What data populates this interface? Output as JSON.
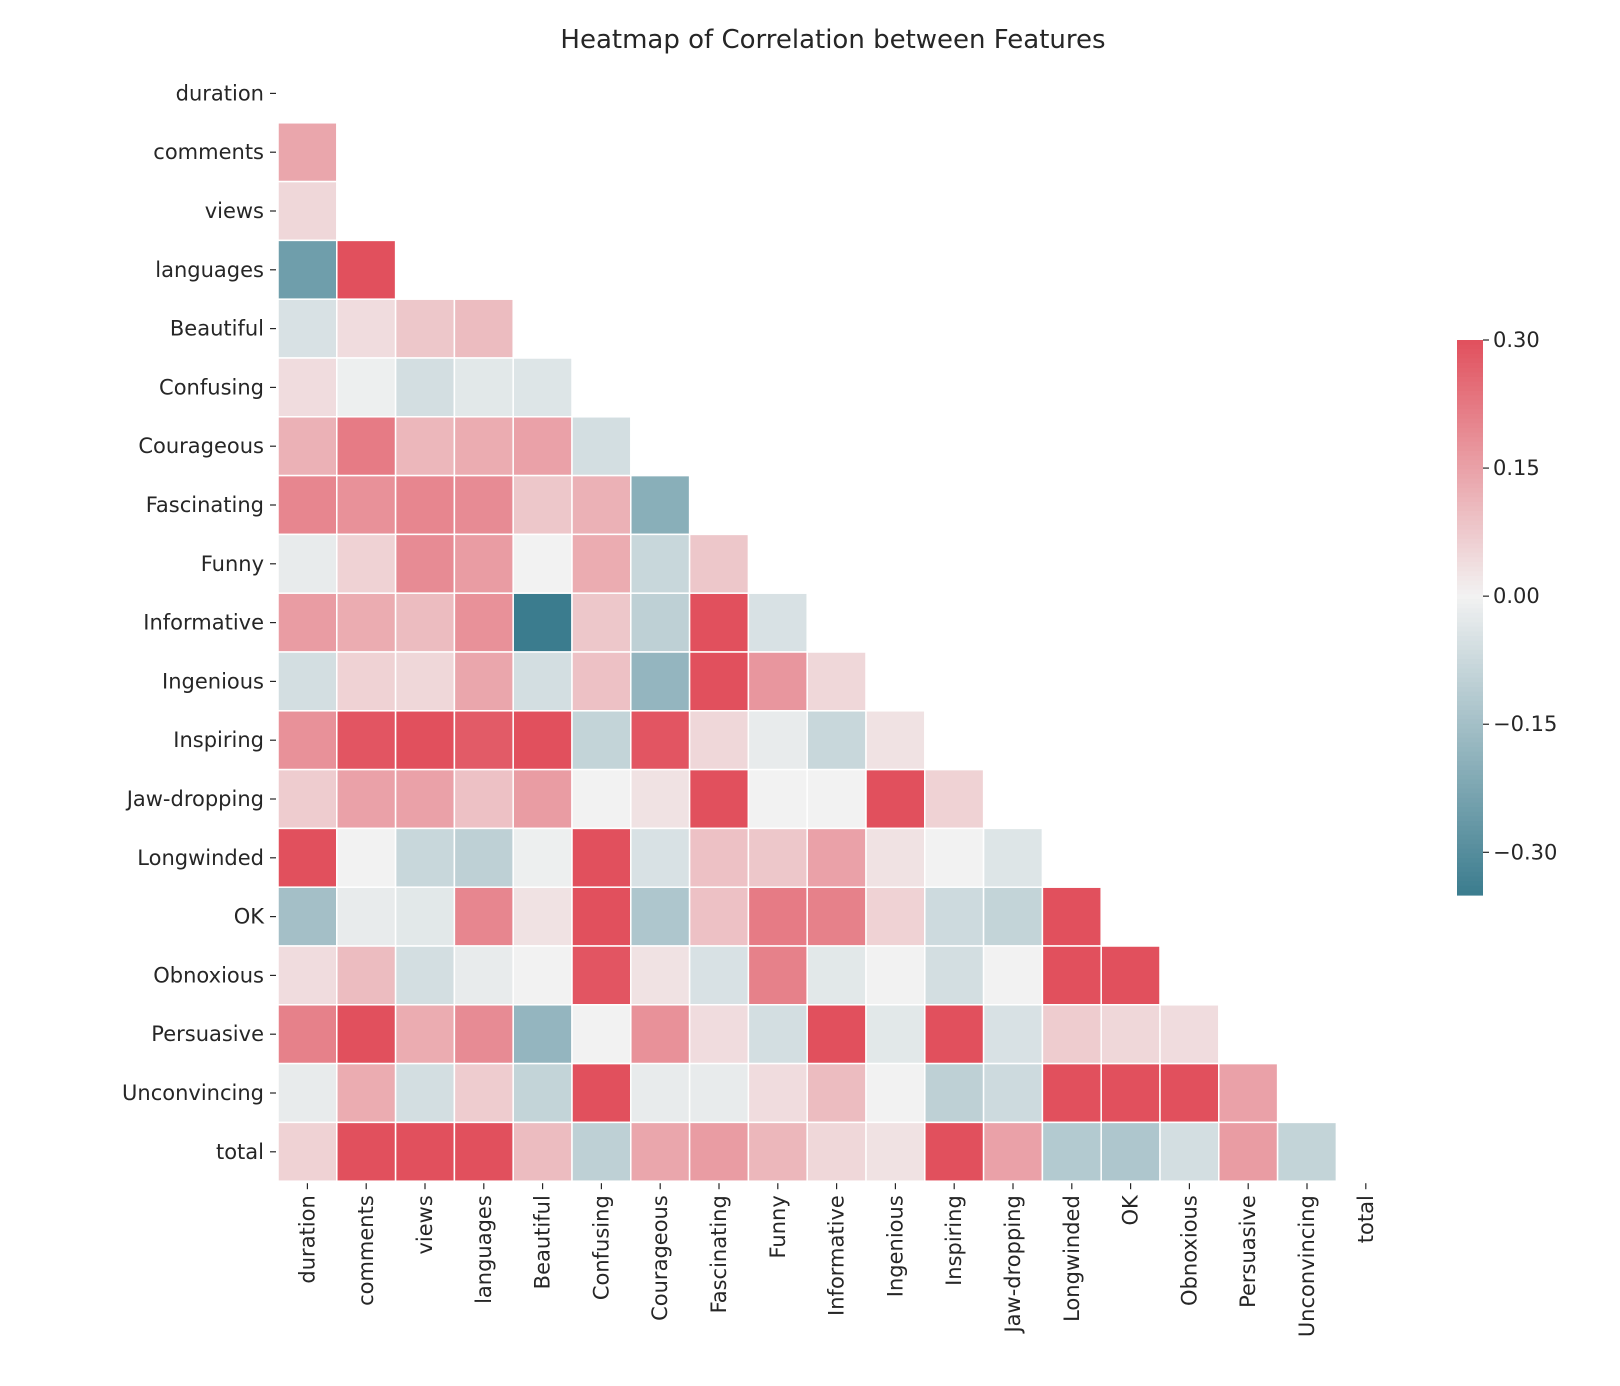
{
  "chart_data": {
    "type": "heatmap",
    "title": "Heatmap of Correlation between Features",
    "xlabel": "",
    "ylabel": "",
    "mask": "upper-triangle-including-diagonal",
    "grid_lines": "white",
    "labels": [
      "duration",
      "comments",
      "views",
      "languages",
      "Beautiful",
      "Confusing",
      "Courageous",
      "Fascinating",
      "Funny",
      "Informative",
      "Ingenious",
      "Inspiring",
      "Jaw-dropping",
      "Longwinded",
      "OK",
      "Obnoxious",
      "Persuasive",
      "Unconvincing",
      "total"
    ],
    "lower_triangle_rows": [
      [],
      [
        0.14
      ],
      [
        0.05
      ],
      [
        -0.25,
        0.5
      ],
      [
        -0.05,
        0.04,
        0.08,
        0.1
      ],
      [
        0.04,
        -0.01,
        -0.06,
        -0.03,
        -0.04
      ],
      [
        0.12,
        0.22,
        0.11,
        0.13,
        0.15,
        -0.06
      ],
      [
        0.2,
        0.18,
        0.2,
        0.19,
        0.08,
        0.12,
        -0.2
      ],
      [
        -0.02,
        0.06,
        0.19,
        0.16,
        0.0,
        0.13,
        -0.08,
        0.08
      ],
      [
        0.16,
        0.13,
        0.1,
        0.18,
        -0.35,
        0.08,
        -0.1,
        0.45,
        -0.05
      ],
      [
        -0.06,
        0.06,
        0.05,
        0.14,
        -0.06,
        0.09,
        -0.18,
        0.38,
        0.17,
        0.05
      ],
      [
        0.18,
        0.29,
        0.3,
        0.28,
        0.3,
        -0.09,
        0.29,
        0.05,
        -0.02,
        -0.08,
        0.03
      ],
      [
        0.07,
        0.15,
        0.15,
        0.09,
        0.16,
        0.0,
        0.03,
        0.4,
        0.0,
        0.0,
        0.4,
        0.06
      ],
      [
        0.4,
        0.0,
        -0.08,
        -0.1,
        -0.01,
        0.3,
        -0.05,
        0.09,
        0.08,
        0.15,
        0.03,
        0.0,
        -0.04
      ],
      [
        -0.15,
        -0.02,
        -0.03,
        0.2,
        0.03,
        0.42,
        -0.13,
        0.09,
        0.22,
        0.21,
        0.06,
        -0.07,
        -0.09,
        0.55
      ],
      [
        0.04,
        0.1,
        -0.06,
        -0.02,
        0.0,
        0.29,
        0.03,
        -0.05,
        0.21,
        -0.03,
        0.0,
        -0.06,
        0.0,
        0.35,
        0.4
      ],
      [
        0.21,
        0.33,
        0.13,
        0.19,
        -0.18,
        0.0,
        0.18,
        0.04,
        -0.06,
        0.3,
        -0.03,
        0.3,
        -0.05,
        0.07,
        0.05,
        0.04
      ],
      [
        -0.02,
        0.13,
        -0.06,
        0.07,
        -0.09,
        0.32,
        -0.02,
        -0.02,
        0.04,
        0.1,
        0.0,
        -0.1,
        -0.07,
        0.4,
        0.45,
        0.45,
        0.15
      ],
      [
        0.06,
        0.42,
        0.4,
        0.36,
        0.1,
        -0.1,
        0.14,
        0.16,
        0.11,
        0.05,
        0.03,
        0.3,
        0.15,
        -0.12,
        -0.13,
        -0.06,
        0.16,
        -0.09
      ]
    ],
    "colorbar": {
      "vmin": -0.35,
      "vmax": 0.3,
      "center": 0.0,
      "ticks": [
        0.3,
        0.15,
        0.0,
        -0.15,
        -0.3
      ],
      "tick_labels": [
        "0.30",
        "0.15",
        "0.00",
        "−0.15",
        "−0.30"
      ],
      "placement": "right"
    },
    "colors": {
      "negative": "#3b7c8e",
      "neutral": "#f2f2f2",
      "positive": "#e1505d"
    }
  }
}
